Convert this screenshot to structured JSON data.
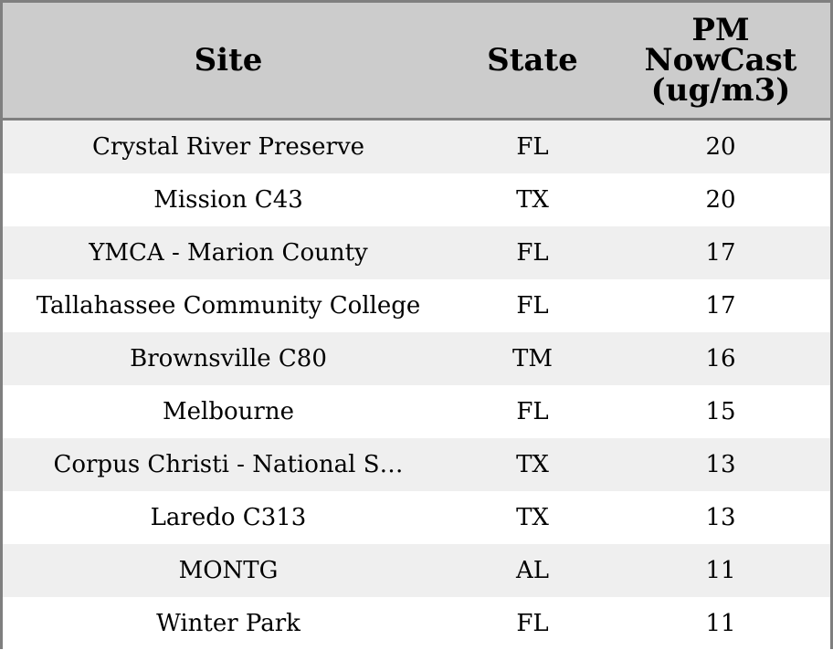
{
  "chart_data": {
    "type": "table",
    "columns": [
      "Site",
      "State",
      "PM\nNowCast\n(ug/m3)"
    ],
    "rows": [
      [
        "Crystal River Preserve",
        "FL",
        "20"
      ],
      [
        "Mission C43",
        "TX",
        "20"
      ],
      [
        "YMCA - Marion County",
        "FL",
        "17"
      ],
      [
        "Tallahassee Community College",
        "FL",
        "17"
      ],
      [
        "Brownsville C80",
        "TM",
        "16"
      ],
      [
        "Melbourne",
        "FL",
        "15"
      ],
      [
        "Corpus Christi - National S…",
        "TX",
        "13"
      ],
      [
        "Laredo C313",
        "TX",
        "13"
      ],
      [
        "MONTG",
        "AL",
        "11"
      ],
      [
        "Winter Park",
        "FL",
        "11"
      ]
    ],
    "colors": {
      "header_bg": "#cccccc",
      "row_alt_bg": "#efefef",
      "row_bg": "#ffffff",
      "border": "#7f7f7f"
    }
  }
}
